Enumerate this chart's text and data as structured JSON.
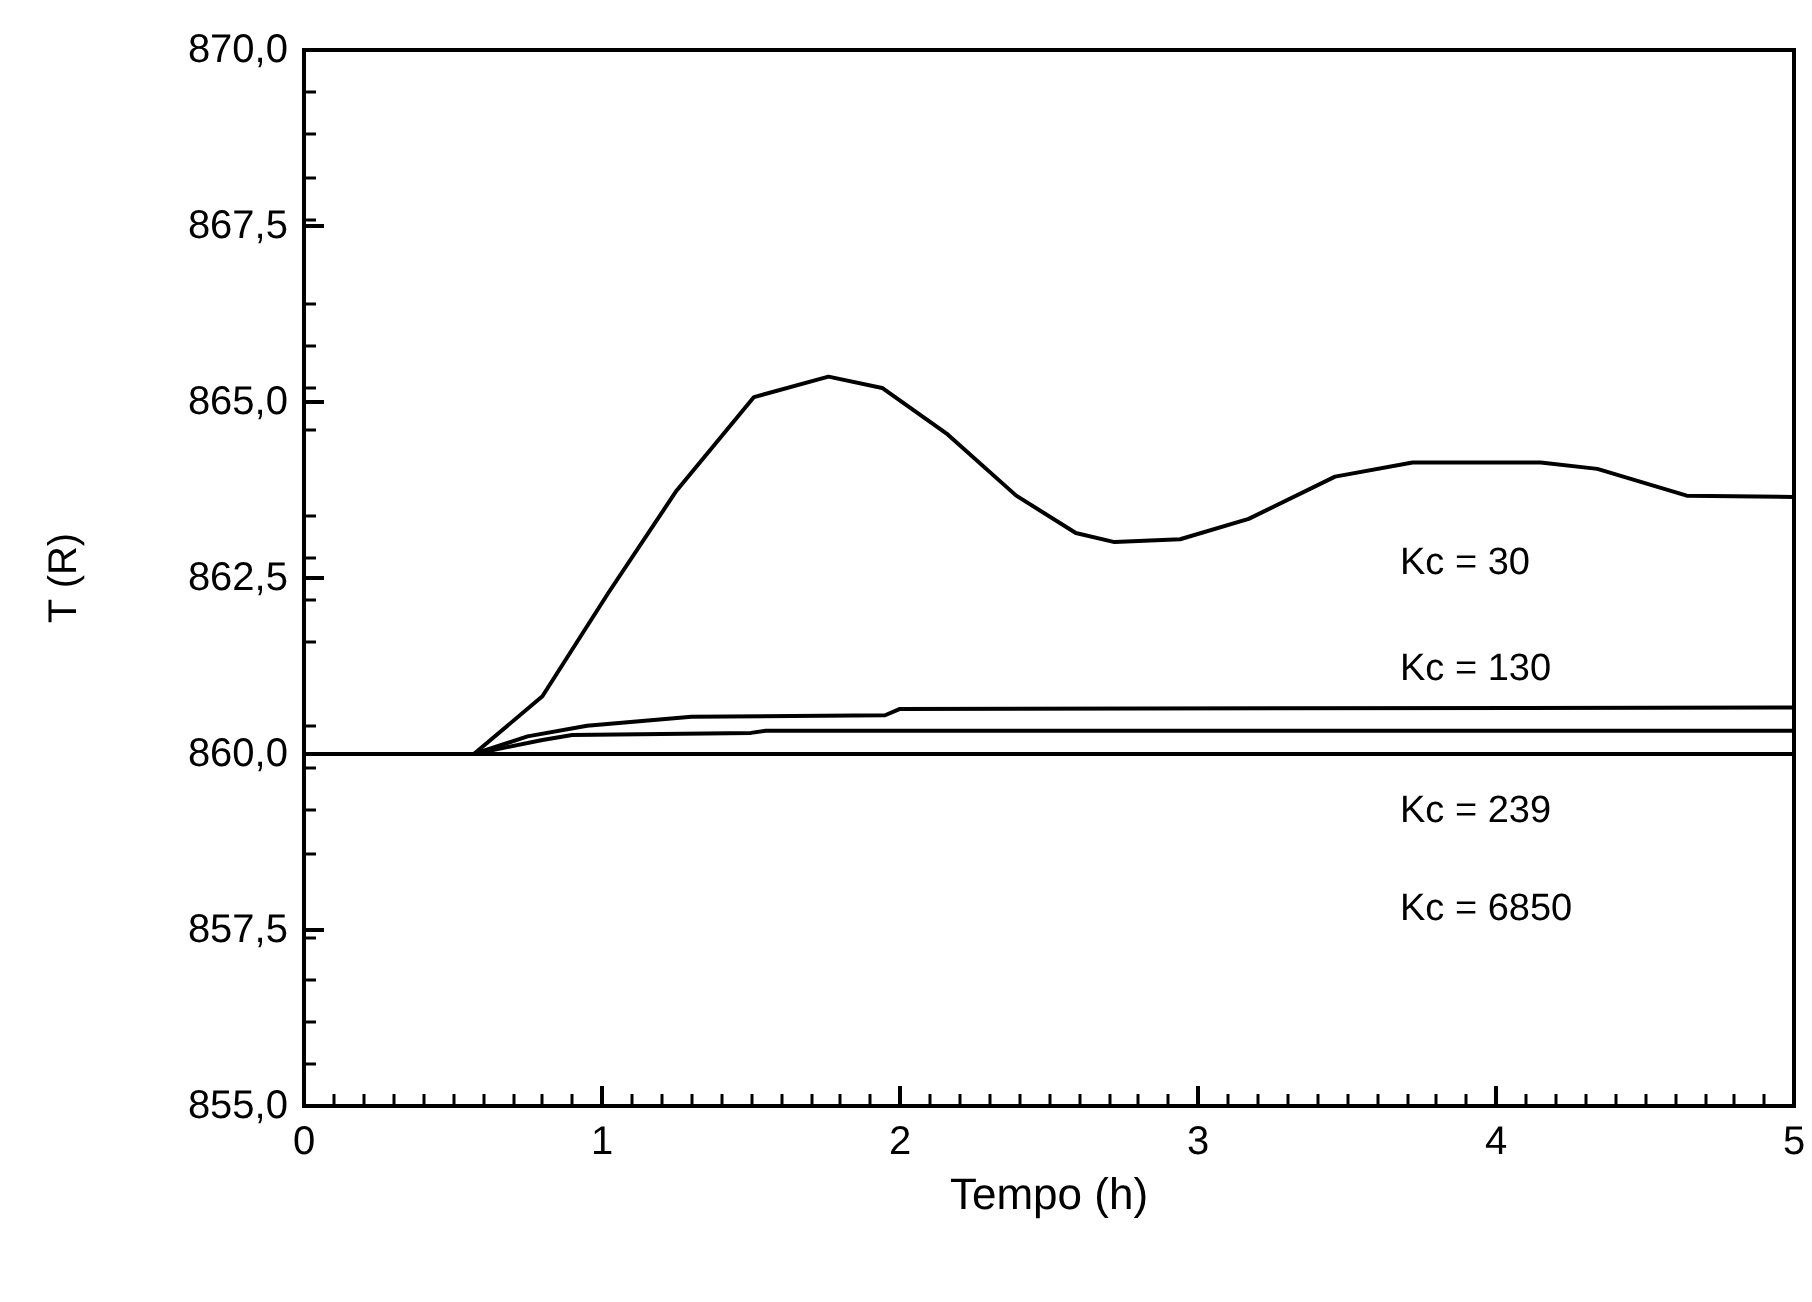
{
  "chart_data": {
    "type": "line",
    "xlabel": "Tempo (h)",
    "ylabel": "T (R)",
    "xlim": [
      0,
      5
    ],
    "xticks": [
      0,
      1,
      2,
      3,
      4,
      5
    ],
    "ylim": [
      855,
      870
    ],
    "yticks": [
      {
        "value": 855,
        "label": "855,0"
      },
      {
        "value": 857.5,
        "label": "857,5"
      },
      {
        "value": 860,
        "label": "860,0"
      },
      {
        "value": 862.5,
        "label": "862,5"
      },
      {
        "value": 865,
        "label": "865,0"
      },
      {
        "value": 867.5,
        "label": "867,5"
      },
      {
        "value": 870,
        "label": "870,0"
      }
    ],
    "grid": false,
    "marker": "none",
    "line_style": "solid",
    "series": [
      {
        "color": "#000000",
        "x": [
          0,
          0.57,
          0.8,
          1.02,
          1.25,
          1.51,
          1.76,
          1.94,
          2.16,
          2.39,
          2.59,
          2.72,
          2.94,
          3.17,
          3.46,
          3.72,
          4.15,
          4.34,
          4.64,
          5
        ],
        "values": [
          860,
          860,
          860.82,
          862.28,
          863.74,
          865.07,
          865.36,
          865.2,
          864.54,
          863.67,
          863.14,
          863.01,
          863.05,
          863.34,
          863.94,
          864.14,
          864.14,
          864.05,
          863.67,
          863.65
        ]
      },
      {
        "color": "#000000",
        "x": [
          0,
          0.57,
          0.75,
          0.95,
          1.3,
          1.95,
          2.0,
          5
        ],
        "values": [
          860,
          860,
          860.25,
          860.4,
          860.53,
          860.55,
          860.64,
          860.66
        ]
      },
      {
        "color": "#000000",
        "x": [
          0,
          0.57,
          0.8,
          0.9,
          1.5,
          1.55,
          5
        ],
        "values": [
          860,
          860,
          860.2,
          860.27,
          860.3,
          860.33,
          860.33
        ]
      },
      {
        "color": "#000000",
        "x": [
          0,
          0.57,
          5
        ],
        "values": [
          860,
          860,
          860
        ]
      }
    ],
    "annotations": [
      "Kc = 30",
      "Kc = 130",
      "Kc = 239",
      "Kc = 6850"
    ]
  }
}
